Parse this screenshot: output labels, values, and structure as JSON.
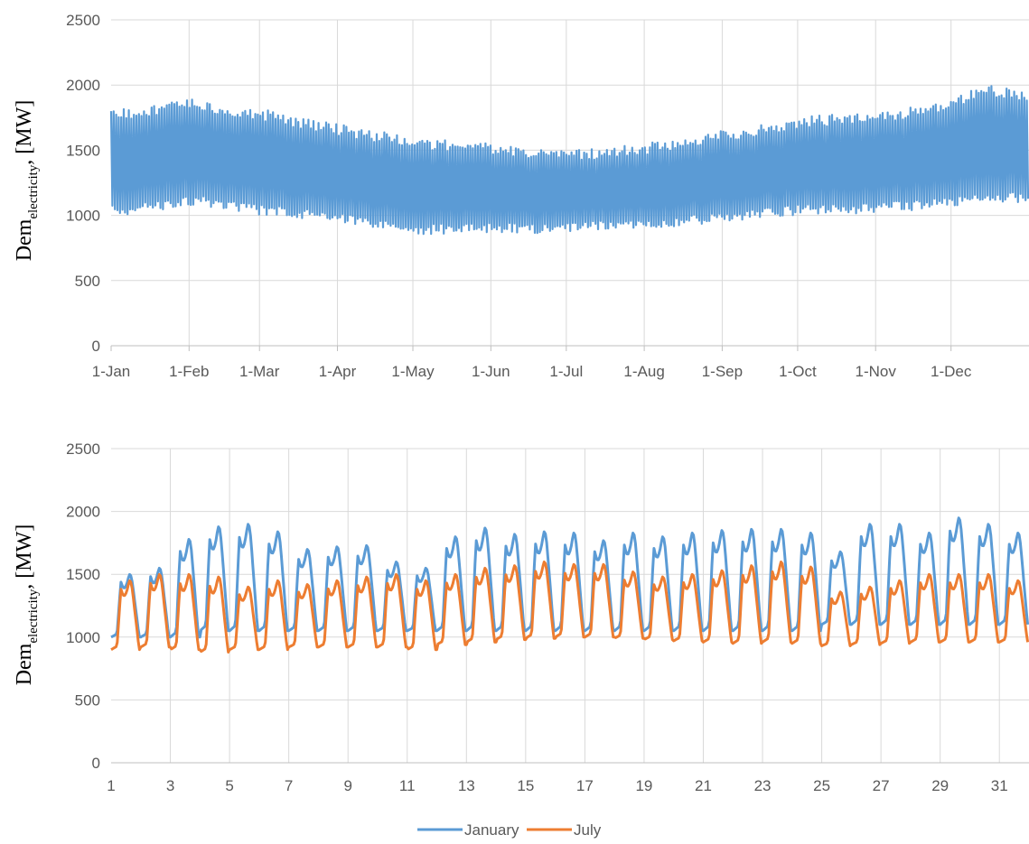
{
  "chart_data": [
    {
      "type": "area",
      "ylabel": {
        "main": "Dem",
        "sub": "electricity",
        "unit": ", [MW]"
      },
      "ylim": [
        0,
        2500
      ],
      "yticks": [
        "0",
        "500",
        "1000",
        "1500",
        "2000",
        "2500"
      ],
      "xticks": [
        "1-Jan",
        "1-Feb",
        "1-Mar",
        "1-Apr",
        "1-May",
        "1-Jun",
        "1-Jul",
        "1-Aug",
        "1-Sep",
        "1-Oct",
        "1-Nov",
        "1-Dec"
      ],
      "xtick_days": [
        0,
        31,
        59,
        90,
        120,
        151,
        181,
        212,
        243,
        273,
        304,
        334
      ],
      "xlim_days": [
        0,
        365
      ],
      "grid": true,
      "color": "#5B9BD5",
      "series": [
        {
          "days": [
            0,
            15,
            31,
            45,
            59,
            75,
            90,
            105,
            120,
            135,
            151,
            166,
            181,
            196,
            212,
            227,
            243,
            258,
            273,
            288,
            304,
            319,
            334,
            348,
            365
          ],
          "upper": [
            1800,
            1850,
            1900,
            1850,
            1820,
            1750,
            1700,
            1650,
            1600,
            1580,
            1550,
            1520,
            1500,
            1520,
            1550,
            1600,
            1650,
            1700,
            1750,
            1780,
            1800,
            1830,
            1900,
            2000,
            1950
          ],
          "lower": [
            1000,
            1020,
            1080,
            1050,
            1000,
            980,
            950,
            900,
            850,
            860,
            870,
            860,
            870,
            880,
            900,
            920,
            950,
            980,
            1000,
            1010,
            1020,
            1040,
            1060,
            1100,
            1100
          ]
        }
      ]
    },
    {
      "type": "line",
      "ylabel": {
        "main": "Dem",
        "sub": "electricity",
        "unit": ", [MW]"
      },
      "ylim": [
        0,
        2500
      ],
      "yticks": [
        "0",
        "500",
        "1000",
        "1500",
        "2000",
        "2500"
      ],
      "xticks": [
        "1",
        "3",
        "5",
        "7",
        "9",
        "11",
        "13",
        "15",
        "17",
        "19",
        "21",
        "23",
        "25",
        "27",
        "29",
        "31"
      ],
      "xlim": [
        1,
        32
      ],
      "grid": true,
      "legend_position": "bottom",
      "series": [
        {
          "name": "January",
          "color": "#5B9BD5",
          "daily_peak": [
            1500,
            1550,
            1780,
            1880,
            1900,
            1840,
            1700,
            1720,
            1730,
            1600,
            1550,
            1800,
            1870,
            1820,
            1840,
            1830,
            1770,
            1830,
            1800,
            1830,
            1850,
            1860,
            1860,
            1830,
            1680,
            1900,
            1900,
            1830,
            1950,
            1900,
            1830
          ],
          "daily_min": [
            1000,
            1000,
            1000,
            1050,
            1050,
            1050,
            1050,
            1050,
            1050,
            1050,
            1050,
            1050,
            1050,
            1050,
            1050,
            1050,
            1050,
            1050,
            1050,
            1050,
            1050,
            1050,
            1050,
            1050,
            1100,
            1100,
            1100,
            1100,
            1100,
            1100,
            1100
          ]
        },
        {
          "name": "July",
          "color": "#ED7D31",
          "daily_peak": [
            1450,
            1500,
            1500,
            1480,
            1400,
            1450,
            1420,
            1450,
            1480,
            1500,
            1450,
            1500,
            1550,
            1570,
            1600,
            1580,
            1580,
            1520,
            1480,
            1500,
            1530,
            1570,
            1600,
            1560,
            1360,
            1400,
            1450,
            1500,
            1500,
            1500,
            1450
          ],
          "daily_min": [
            900,
            920,
            900,
            880,
            900,
            900,
            920,
            920,
            920,
            920,
            900,
            940,
            960,
            980,
            990,
            1000,
            1000,
            990,
            980,
            970,
            960,
            950,
            960,
            950,
            930,
            940,
            950,
            960,
            960,
            960,
            960
          ]
        }
      ]
    }
  ]
}
